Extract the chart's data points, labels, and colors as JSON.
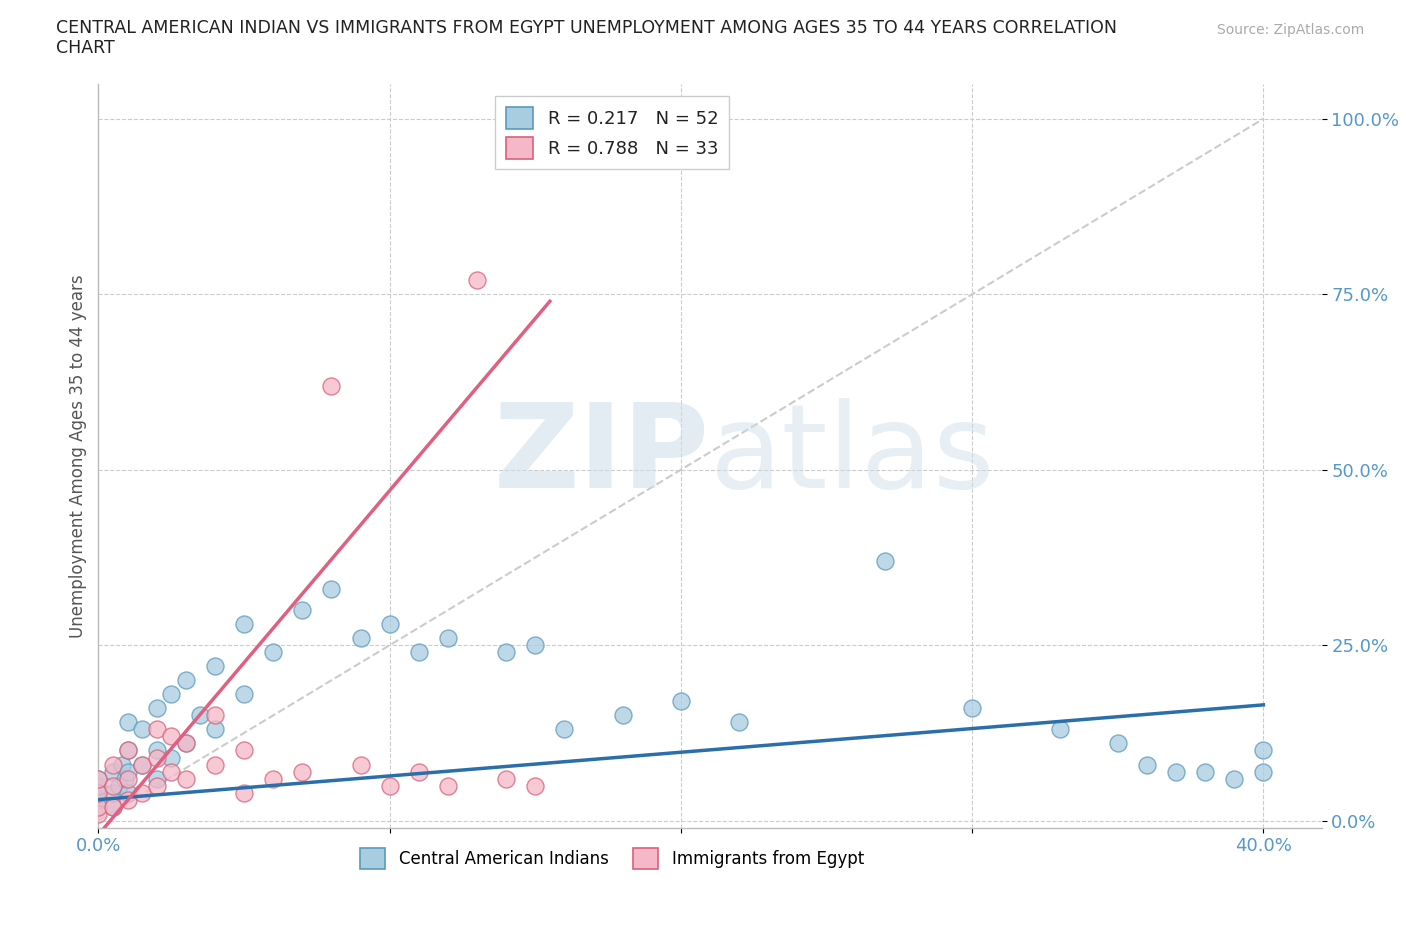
{
  "title_line1": "CENTRAL AMERICAN INDIAN VS IMMIGRANTS FROM EGYPT UNEMPLOYMENT AMONG AGES 35 TO 44 YEARS CORRELATION",
  "title_line2": "CHART",
  "source_text": "Source: ZipAtlas.com",
  "ylabel": "Unemployment Among Ages 35 to 44 years",
  "xlim": [
    0.0,
    0.42
  ],
  "ylim": [
    -0.01,
    1.05
  ],
  "ytick_positions": [
    0.0,
    0.25,
    0.5,
    0.75,
    1.0
  ],
  "ytick_labels": [
    "0.0%",
    "25.0%",
    "50.0%",
    "75.0%",
    "100.0%"
  ],
  "xtick_positions": [
    0.0,
    0.1,
    0.2,
    0.3,
    0.4
  ],
  "xtick_labels_show": [
    "0.0%",
    "",
    "",
    "",
    "40.0%"
  ],
  "watermark_zip": "ZIP",
  "watermark_atlas": "atlas",
  "legend_label1": "R = 0.217   N = 52",
  "legend_label2": "R = 0.788   N = 33",
  "legend_bottom1": "Central American Indians",
  "legend_bottom2": "Immigrants from Egypt",
  "color_blue_fill": "#a8cce0",
  "color_blue_edge": "#5b9abd",
  "color_pink_fill": "#f5b8c8",
  "color_pink_edge": "#d9607a",
  "color_blue_line": "#2b6faa",
  "color_pink_line": "#e06080",
  "color_diag": "#cccccc",
  "color_ytick": "#5599cc",
  "color_xtick": "#5599cc",
  "background": "#ffffff",
  "blue_line_x0": 0.0,
  "blue_line_y0": 0.03,
  "blue_line_x1": 0.4,
  "blue_line_y1": 0.165,
  "pink_line_x0": 0.0,
  "pink_line_y0": -0.02,
  "pink_line_x1": 0.155,
  "pink_line_y1": 0.74,
  "blue_x": [
    0.0,
    0.0,
    0.0,
    0.0,
    0.0,
    0.005,
    0.005,
    0.005,
    0.007,
    0.008,
    0.009,
    0.01,
    0.01,
    0.01,
    0.01,
    0.015,
    0.015,
    0.02,
    0.02,
    0.02,
    0.025,
    0.025,
    0.03,
    0.03,
    0.035,
    0.04,
    0.04,
    0.05,
    0.05,
    0.06,
    0.07,
    0.08,
    0.09,
    0.1,
    0.11,
    0.12,
    0.14,
    0.15,
    0.16,
    0.18,
    0.2,
    0.22,
    0.27,
    0.3,
    0.33,
    0.35,
    0.36,
    0.37,
    0.38,
    0.39,
    0.4,
    0.4
  ],
  "blue_y": [
    0.02,
    0.03,
    0.04,
    0.05,
    0.06,
    0.02,
    0.04,
    0.07,
    0.05,
    0.08,
    0.06,
    0.04,
    0.07,
    0.1,
    0.14,
    0.08,
    0.13,
    0.06,
    0.1,
    0.16,
    0.09,
    0.18,
    0.11,
    0.2,
    0.15,
    0.13,
    0.22,
    0.18,
    0.28,
    0.24,
    0.3,
    0.33,
    0.26,
    0.28,
    0.24,
    0.26,
    0.24,
    0.25,
    0.13,
    0.15,
    0.17,
    0.14,
    0.37,
    0.16,
    0.13,
    0.11,
    0.08,
    0.07,
    0.07,
    0.06,
    0.07,
    0.1
  ],
  "pink_x": [
    0.0,
    0.0,
    0.0,
    0.0,
    0.005,
    0.005,
    0.005,
    0.01,
    0.01,
    0.01,
    0.015,
    0.015,
    0.02,
    0.02,
    0.02,
    0.025,
    0.025,
    0.03,
    0.03,
    0.04,
    0.04,
    0.05,
    0.05,
    0.06,
    0.07,
    0.08,
    0.09,
    0.1,
    0.11,
    0.12,
    0.13,
    0.14,
    0.15
  ],
  "pink_y": [
    0.01,
    0.02,
    0.04,
    0.06,
    0.02,
    0.05,
    0.08,
    0.03,
    0.06,
    0.1,
    0.04,
    0.08,
    0.05,
    0.09,
    0.13,
    0.07,
    0.12,
    0.06,
    0.11,
    0.08,
    0.15,
    0.1,
    0.04,
    0.06,
    0.07,
    0.62,
    0.08,
    0.05,
    0.07,
    0.05,
    0.77,
    0.06,
    0.05
  ]
}
